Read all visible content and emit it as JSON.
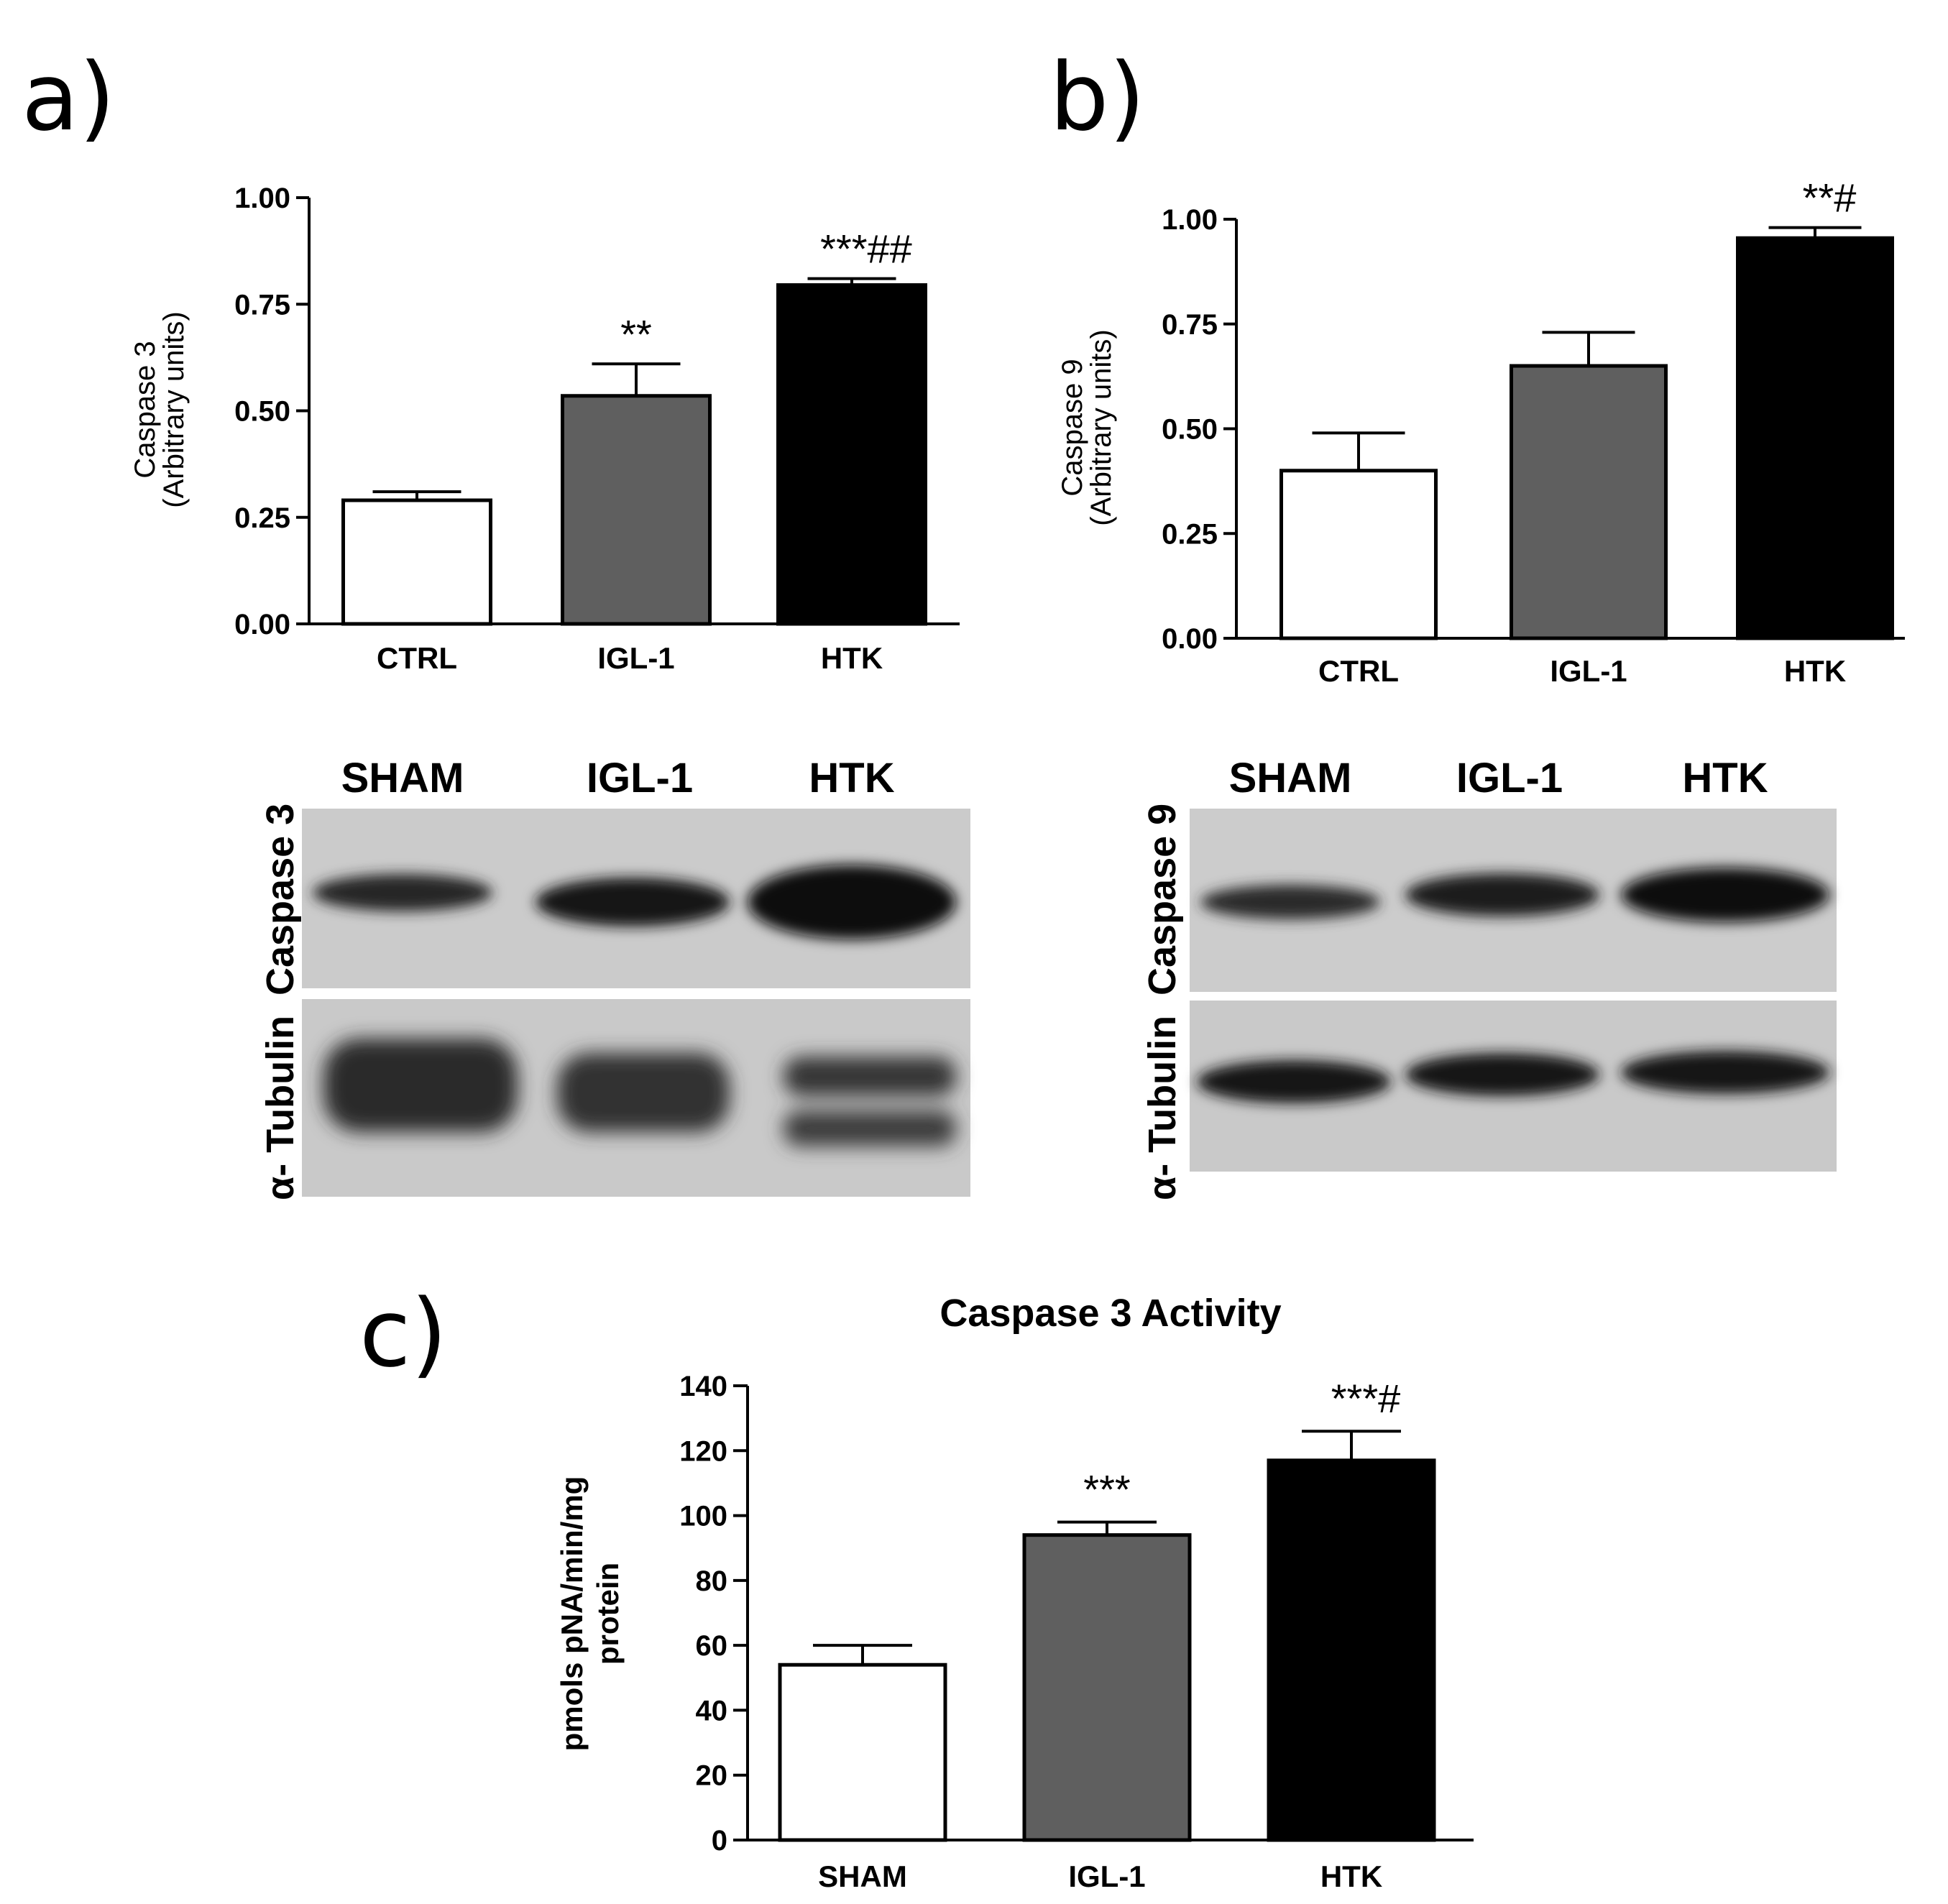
{
  "panels": {
    "a": {
      "letter": "a)"
    },
    "b": {
      "letter": "b)"
    },
    "c": {
      "letter": "c)"
    }
  },
  "blots": {
    "a": {
      "columns": [
        "SHAM",
        "IGL-1",
        "HTK"
      ],
      "rows": [
        "Caspase 3",
        "α- Tubulin"
      ]
    },
    "b": {
      "columns": [
        "SHAM",
        "IGL-1",
        "HTK"
      ],
      "rows": [
        "Caspase 9",
        "α- Tubulin"
      ]
    }
  },
  "colors": {
    "CTRL": "#ffffff",
    "IGL-1": "#5f5f5f",
    "HTK": "#000000",
    "axis": "#000000"
  },
  "chart_data": [
    {
      "id": "a",
      "type": "bar",
      "title": "",
      "categories": [
        "CTRL",
        "IGL-1",
        "HTK"
      ],
      "values": [
        0.29,
        0.535,
        0.795
      ],
      "errors": [
        0.02,
        0.075,
        0.015
      ],
      "annotations": [
        "",
        "**",
        "***##"
      ],
      "ylabel": [
        "Caspase 3",
        "(Arbitrary units)"
      ],
      "ylim": [
        0,
        1.0
      ],
      "yticks": [
        "0.00",
        "0.25",
        "0.50",
        "0.75",
        "1.00"
      ]
    },
    {
      "id": "b",
      "type": "bar",
      "title": "",
      "categories": [
        "CTRL",
        "IGL-1",
        "HTK"
      ],
      "values": [
        0.4,
        0.65,
        0.955
      ],
      "errors": [
        0.09,
        0.08,
        0.025
      ],
      "annotations": [
        "",
        "",
        "**#"
      ],
      "ylabel": [
        "Caspase 9",
        "(Arbitrary units)"
      ],
      "ylim": [
        0,
        1.0
      ],
      "yticks": [
        "0.00",
        "0.25",
        "0.50",
        "0.75",
        "1.00"
      ]
    },
    {
      "id": "c",
      "type": "bar",
      "title": "Caspase 3 Activity",
      "categories": [
        "SHAM",
        "IGL-1",
        "HTK"
      ],
      "values": [
        54,
        94,
        117
      ],
      "errors": [
        6,
        4,
        9
      ],
      "annotations": [
        "",
        "***",
        "***#"
      ],
      "ylabel": [
        "pmols pNA/min/mg",
        "protein"
      ],
      "ylim": [
        0,
        140
      ],
      "yticks": [
        "0",
        "20",
        "40",
        "60",
        "80",
        "100",
        "120",
        "140"
      ]
    }
  ]
}
